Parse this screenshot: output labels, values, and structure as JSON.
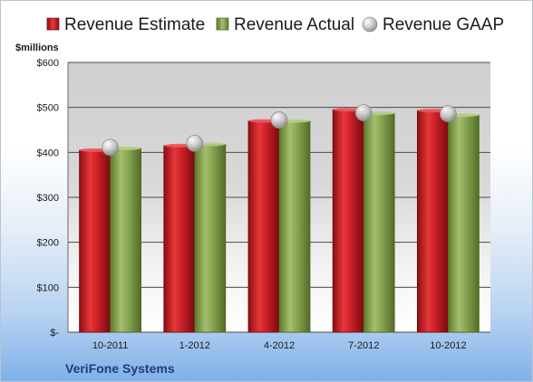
{
  "chart_data": {
    "type": "bar",
    "title": "",
    "unit_label": "$millions",
    "company": "VeriFone Systems",
    "categories": [
      "10-2011",
      "1-2012",
      "4-2012",
      "7-2012",
      "10-2012"
    ],
    "series": [
      {
        "name": "Revenue Estimate",
        "type": "bar",
        "color": "#c8161d",
        "values": [
          405,
          415,
          470,
          495,
          493
        ]
      },
      {
        "name": "Revenue Actual",
        "type": "bar",
        "color": "#7f9f47",
        "values": [
          409,
          418,
          470,
          487,
          483
        ]
      },
      {
        "name": "Revenue GAAP",
        "type": "marker",
        "color": "#c0c0c0",
        "values": [
          411,
          420,
          472,
          488,
          486
        ]
      }
    ],
    "yticks": [
      0,
      100,
      200,
      300,
      400,
      500,
      600
    ],
    "ytick_labels": [
      "$-",
      "$100",
      "$200",
      "$300",
      "$400",
      "$500",
      "$600"
    ],
    "ylim": [
      0,
      600
    ],
    "grid": true,
    "legend_position": "top"
  }
}
